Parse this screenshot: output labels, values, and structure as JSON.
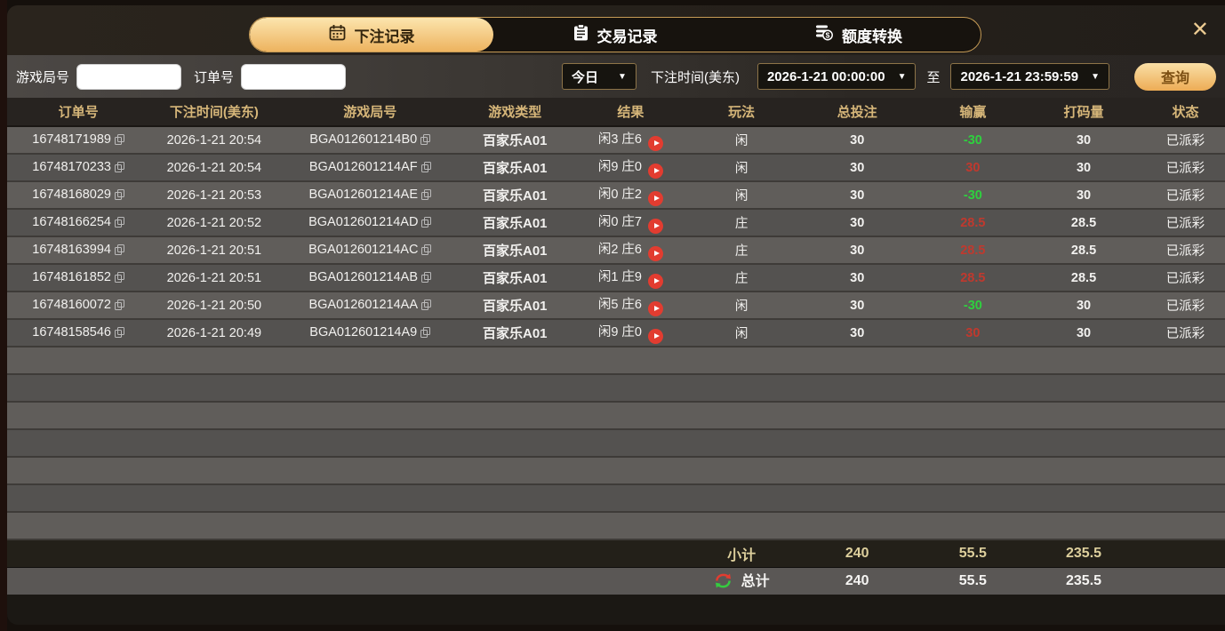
{
  "tabs": [
    {
      "label": "下注记录",
      "icon": "calendar-icon",
      "active": true
    },
    {
      "label": "交易记录",
      "icon": "clipboard-icon",
      "active": false
    },
    {
      "label": "额度转换",
      "icon": "coins-transfer-icon",
      "active": false
    }
  ],
  "close_label": "✕",
  "filters": {
    "game_round_label": "游戏局号",
    "game_round_value": "",
    "order_no_label": "订单号",
    "order_no_value": "",
    "range_preset": "今日",
    "caret": "▼",
    "bet_time_label": "下注时间(美东)",
    "time_from": "2026-1-21 00:00:00",
    "to_label": "至",
    "time_to": "2026-1-21 23:59:59",
    "search_label": "查询"
  },
  "table": {
    "headers": [
      "订单号",
      "下注时间(美东)",
      "游戏局号",
      "游戏类型",
      "结果",
      "玩法",
      "总投注",
      "输赢",
      "打码量",
      "状态"
    ],
    "rows": [
      {
        "order_no": "16748171989",
        "bet_time": "2026-1-21 20:54",
        "game_round": "BGA012601214B0",
        "game_type": "百家乐A01",
        "result": "闲3 庄6",
        "play": "闲",
        "total_bet": "30",
        "win_loss": "-30",
        "win_loss_color": "green",
        "turnover": "30",
        "status": "已派彩"
      },
      {
        "order_no": "16748170233",
        "bet_time": "2026-1-21 20:54",
        "game_round": "BGA012601214AF",
        "game_type": "百家乐A01",
        "result": "闲9 庄0",
        "play": "闲",
        "total_bet": "30",
        "win_loss": "30",
        "win_loss_color": "red",
        "turnover": "30",
        "status": "已派彩"
      },
      {
        "order_no": "16748168029",
        "bet_time": "2026-1-21 20:53",
        "game_round": "BGA012601214AE",
        "game_type": "百家乐A01",
        "result": "闲0 庄2",
        "play": "闲",
        "total_bet": "30",
        "win_loss": "-30",
        "win_loss_color": "green",
        "turnover": "30",
        "status": "已派彩"
      },
      {
        "order_no": "16748166254",
        "bet_time": "2026-1-21 20:52",
        "game_round": "BGA012601214AD",
        "game_type": "百家乐A01",
        "result": "闲0 庄7",
        "play": "庄",
        "total_bet": "30",
        "win_loss": "28.5",
        "win_loss_color": "red",
        "turnover": "28.5",
        "status": "已派彩"
      },
      {
        "order_no": "16748163994",
        "bet_time": "2026-1-21 20:51",
        "game_round": "BGA012601214AC",
        "game_type": "百家乐A01",
        "result": "闲2 庄6",
        "play": "庄",
        "total_bet": "30",
        "win_loss": "28.5",
        "win_loss_color": "red",
        "turnover": "28.5",
        "status": "已派彩"
      },
      {
        "order_no": "16748161852",
        "bet_time": "2026-1-21 20:51",
        "game_round": "BGA012601214AB",
        "game_type": "百家乐A01",
        "result": "闲1 庄9",
        "play": "庄",
        "total_bet": "30",
        "win_loss": "28.5",
        "win_loss_color": "red",
        "turnover": "28.5",
        "status": "已派彩"
      },
      {
        "order_no": "16748160072",
        "bet_time": "2026-1-21 20:50",
        "game_round": "BGA012601214AA",
        "game_type": "百家乐A01",
        "result": "闲5 庄6",
        "play": "闲",
        "total_bet": "30",
        "win_loss": "-30",
        "win_loss_color": "green",
        "turnover": "30",
        "status": "已派彩"
      },
      {
        "order_no": "16748158546",
        "bet_time": "2026-1-21 20:49",
        "game_round": "BGA012601214A9",
        "game_type": "百家乐A01",
        "result": "闲9 庄0",
        "play": "闲",
        "total_bet": "30",
        "win_loss": "30",
        "win_loss_color": "red",
        "turnover": "30",
        "status": "已派彩"
      }
    ],
    "empty_row_count": 7,
    "subtotal": {
      "label": "小计",
      "total_bet": "240",
      "win_loss": "55.5",
      "turnover": "235.5"
    },
    "total": {
      "label": "总计",
      "total_bet": "240",
      "win_loss": "55.5",
      "turnover": "235.5"
    }
  },
  "colors": {
    "accent_gold": "#edb35f",
    "tab_active_text": "#33250d",
    "win_red": "#c0392e",
    "loss_green": "#2ed13e",
    "footer_red": "#e03f35"
  }
}
